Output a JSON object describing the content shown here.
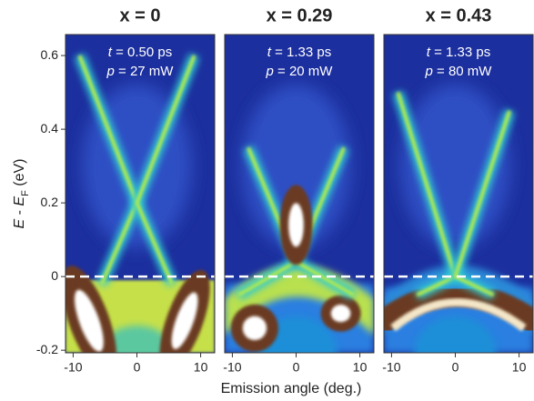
{
  "figure": {
    "y_label": [
      "E",
      " - ",
      "E",
      "F",
      " (eV)"
    ],
    "x_label": "Emission angle (deg.)"
  },
  "chart_data": [
    {
      "type": "heatmap",
      "title": "x = 0",
      "annotations": [
        [
          "t",
          " = 0.50 ps"
        ],
        [
          "p",
          " = 27 mW"
        ]
      ],
      "xlim": [
        -11.2,
        12.2
      ],
      "xticks": [
        -10,
        0,
        10
      ],
      "ylim": [
        -0.207,
        0.657
      ],
      "yticks": [
        -0.2,
        0,
        0.2,
        0.4,
        0.6
      ],
      "hline": 0
    },
    {
      "type": "heatmap",
      "title": "x = 0.29",
      "annotations": [
        [
          "t",
          " = 1.33 ps"
        ],
        [
          "p",
          " = 20 mW"
        ]
      ],
      "xlim": [
        -11.2,
        12.2
      ],
      "xticks": [
        -10,
        0,
        10
      ],
      "ylim": [
        -0.207,
        0.657
      ],
      "hline": 0
    },
    {
      "type": "heatmap",
      "title": "x = 0.43",
      "annotations": [
        [
          "t",
          " = 1.33 ps"
        ],
        [
          "p",
          " = 80 mW"
        ]
      ],
      "xlim": [
        -11.2,
        12.2
      ],
      "xticks": [
        -10,
        0,
        10
      ],
      "ylim": [
        -0.207,
        0.657
      ],
      "hline": 0
    }
  ]
}
